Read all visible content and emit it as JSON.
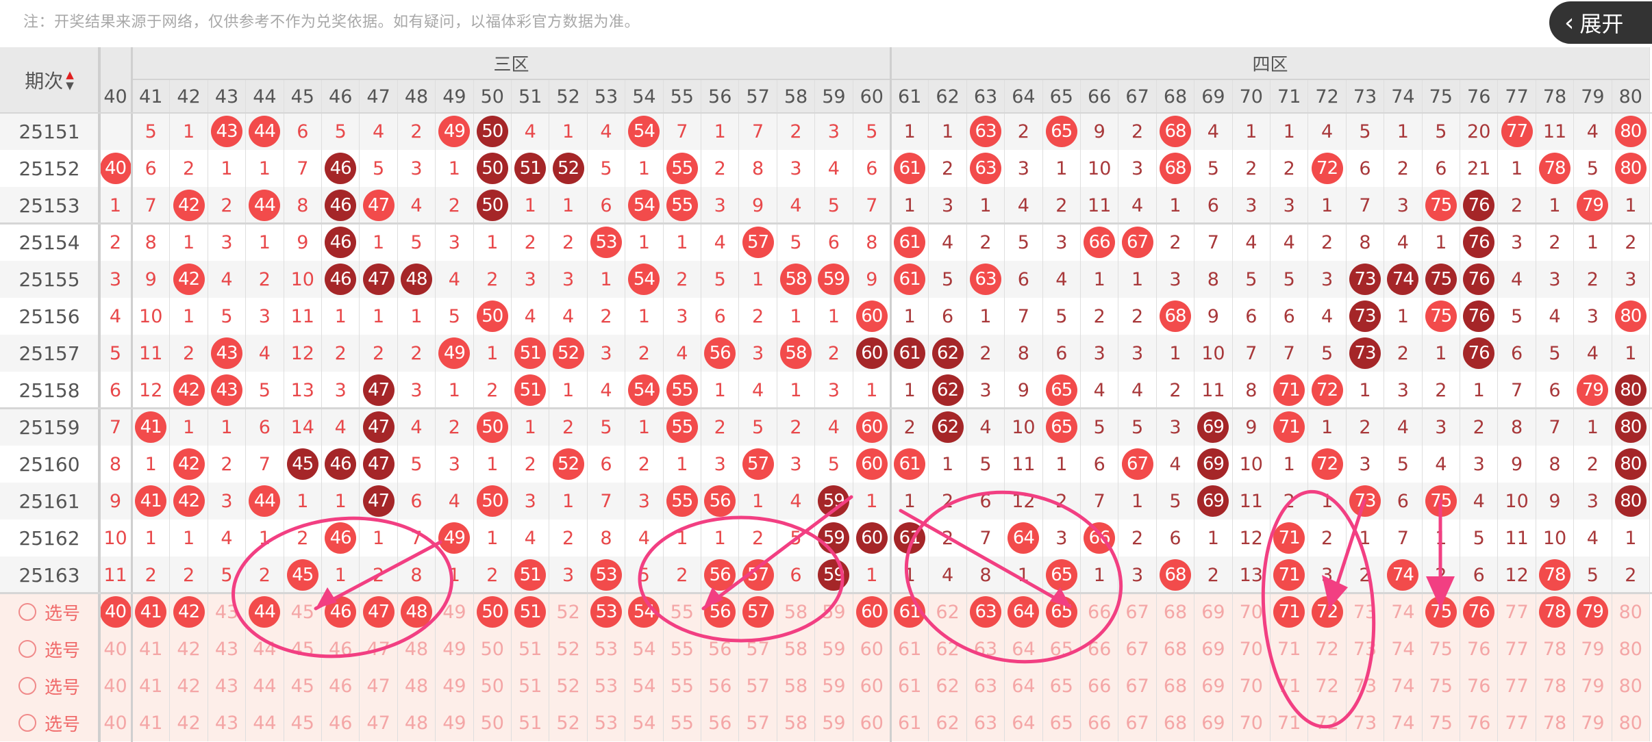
{
  "notice": "注：开奖结果来源于网络，仅供参考不作为兑奖依据。如有疑问，以福体彩官方数据为准。",
  "header": {
    "period_label": "期次",
    "sort_up_icon": "triangle-up-icon",
    "sort_down_icon": "triangle-down-icon",
    "zones": [
      {
        "label": "三区",
        "from": 41,
        "to": 60
      },
      {
        "label": "四区",
        "from": 61,
        "to": 80
      }
    ],
    "partial_column": "40",
    "columns": [
      "41",
      "42",
      "43",
      "44",
      "45",
      "46",
      "47",
      "48",
      "49",
      "50",
      "51",
      "52",
      "53",
      "54",
      "55",
      "56",
      "57",
      "58",
      "59",
      "60",
      "61",
      "62",
      "63",
      "64",
      "65",
      "66",
      "67",
      "68",
      "69",
      "70",
      "71",
      "72",
      "73",
      "74",
      "75",
      "76",
      "77",
      "78",
      "79",
      "80"
    ]
  },
  "colors": {
    "ball_light": "#f24b4b",
    "ball_dark": "#a52628",
    "miss_zone3": "#e8484a",
    "miss_zone4": "#a8383a",
    "annotation": "#f23f82"
  },
  "rows": [
    {
      "period": "25151",
      "col40": "",
      "cells": [
        "5",
        "1",
        {
          "ball": "43",
          "tone": "light"
        },
        {
          "ball": "44",
          "tone": "light"
        },
        "6",
        "5",
        "4",
        "2",
        {
          "ball": "49",
          "tone": "light"
        },
        {
          "ball": "50",
          "tone": "dark"
        },
        "4",
        "1",
        "4",
        {
          "ball": "54",
          "tone": "light"
        },
        "7",
        "1",
        "7",
        "2",
        "3",
        "5",
        "1",
        "1",
        {
          "ball": "63",
          "tone": "light"
        },
        "2",
        {
          "ball": "65",
          "tone": "light"
        },
        "9",
        "2",
        {
          "ball": "68",
          "tone": "light"
        },
        "4",
        "1",
        "1",
        "4",
        "5",
        "1",
        "5",
        "20",
        {
          "ball": "77",
          "tone": "light"
        },
        "11",
        "4",
        {
          "ball": "80",
          "tone": "light"
        }
      ]
    },
    {
      "period": "25152",
      "col40": {
        "ball": "40",
        "tone": "light"
      },
      "cells": [
        "6",
        "2",
        "1",
        "1",
        "7",
        {
          "ball": "46",
          "tone": "dark"
        },
        "5",
        "3",
        "1",
        {
          "ball": "50",
          "tone": "dark"
        },
        {
          "ball": "51",
          "tone": "dark"
        },
        {
          "ball": "52",
          "tone": "dark"
        },
        "5",
        "1",
        {
          "ball": "55",
          "tone": "light"
        },
        "2",
        "8",
        "3",
        "4",
        "6",
        {
          "ball": "61",
          "tone": "light"
        },
        "2",
        {
          "ball": "63",
          "tone": "light"
        },
        "3",
        "1",
        "10",
        "3",
        {
          "ball": "68",
          "tone": "light"
        },
        "5",
        "2",
        "2",
        {
          "ball": "72",
          "tone": "light"
        },
        "6",
        "2",
        "6",
        "21",
        "1",
        {
          "ball": "78",
          "tone": "light"
        },
        "5",
        {
          "ball": "80",
          "tone": "light"
        }
      ]
    },
    {
      "period": "25153",
      "col40": "1",
      "cells": [
        "7",
        {
          "ball": "42",
          "tone": "light"
        },
        "2",
        {
          "ball": "44",
          "tone": "light"
        },
        "8",
        {
          "ball": "46",
          "tone": "dark"
        },
        {
          "ball": "47",
          "tone": "light"
        },
        "4",
        "2",
        {
          "ball": "50",
          "tone": "dark"
        },
        "1",
        "1",
        "6",
        {
          "ball": "54",
          "tone": "light"
        },
        {
          "ball": "55",
          "tone": "light"
        },
        "3",
        "9",
        "4",
        "5",
        "7",
        "1",
        "3",
        "1",
        "4",
        "2",
        "11",
        "4",
        "1",
        "6",
        "3",
        "3",
        "1",
        "7",
        "3",
        {
          "ball": "75",
          "tone": "light"
        },
        {
          "ball": "76",
          "tone": "dark"
        },
        "2",
        "1",
        {
          "ball": "79",
          "tone": "light"
        },
        "1"
      ]
    },
    {
      "period": "25154",
      "col40": "2",
      "cells": [
        "8",
        "1",
        "3",
        "1",
        "9",
        {
          "ball": "46",
          "tone": "dark"
        },
        "1",
        "5",
        "3",
        "1",
        "2",
        "2",
        {
          "ball": "53",
          "tone": "light"
        },
        "1",
        "1",
        "4",
        {
          "ball": "57",
          "tone": "light"
        },
        "5",
        "6",
        "8",
        {
          "ball": "61",
          "tone": "light"
        },
        "4",
        "2",
        "5",
        "3",
        {
          "ball": "66",
          "tone": "light"
        },
        {
          "ball": "67",
          "tone": "light"
        },
        "2",
        "7",
        "4",
        "4",
        "2",
        "8",
        "4",
        "1",
        {
          "ball": "76",
          "tone": "dark"
        },
        "3",
        "2",
        "1",
        "2"
      ]
    },
    {
      "period": "25155",
      "col40": "3",
      "cells": [
        "9",
        {
          "ball": "42",
          "tone": "light"
        },
        "4",
        "2",
        "10",
        {
          "ball": "46",
          "tone": "dark"
        },
        {
          "ball": "47",
          "tone": "dark"
        },
        {
          "ball": "48",
          "tone": "dark"
        },
        "4",
        "2",
        "3",
        "3",
        "1",
        {
          "ball": "54",
          "tone": "light"
        },
        "2",
        "5",
        "1",
        {
          "ball": "58",
          "tone": "light"
        },
        {
          "ball": "59",
          "tone": "light"
        },
        "9",
        {
          "ball": "61",
          "tone": "light"
        },
        "5",
        {
          "ball": "63",
          "tone": "light"
        },
        "6",
        "4",
        "1",
        "1",
        "3",
        "8",
        "5",
        "5",
        "3",
        {
          "ball": "73",
          "tone": "dark"
        },
        {
          "ball": "74",
          "tone": "dark"
        },
        {
          "ball": "75",
          "tone": "dark"
        },
        {
          "ball": "76",
          "tone": "dark"
        },
        "4",
        "3",
        "2",
        "3"
      ]
    },
    {
      "period": "25156",
      "col40": "4",
      "cells": [
        "10",
        "1",
        "5",
        "3",
        "11",
        "1",
        "1",
        "1",
        "5",
        {
          "ball": "50",
          "tone": "light"
        },
        "4",
        "4",
        "2",
        "1",
        "3",
        "6",
        "2",
        "1",
        "1",
        {
          "ball": "60",
          "tone": "light"
        },
        "1",
        "6",
        "1",
        "7",
        "5",
        "2",
        "2",
        {
          "ball": "68",
          "tone": "light"
        },
        "9",
        "6",
        "6",
        "4",
        {
          "ball": "73",
          "tone": "dark"
        },
        "1",
        {
          "ball": "75",
          "tone": "light"
        },
        {
          "ball": "76",
          "tone": "dark"
        },
        "5",
        "4",
        "3",
        {
          "ball": "80",
          "tone": "light"
        }
      ]
    },
    {
      "period": "25157",
      "col40": "5",
      "cells": [
        "11",
        "2",
        {
          "ball": "43",
          "tone": "light"
        },
        "4",
        "12",
        "2",
        "2",
        "2",
        {
          "ball": "49",
          "tone": "light"
        },
        "1",
        {
          "ball": "51",
          "tone": "light"
        },
        {
          "ball": "52",
          "tone": "light"
        },
        "3",
        "2",
        "4",
        {
          "ball": "56",
          "tone": "light"
        },
        "3",
        {
          "ball": "58",
          "tone": "light"
        },
        "2",
        {
          "ball": "60",
          "tone": "dark"
        },
        {
          "ball": "61",
          "tone": "dark"
        },
        {
          "ball": "62",
          "tone": "dark"
        },
        "2",
        "8",
        "6",
        "3",
        "3",
        "1",
        "10",
        "7",
        "7",
        "5",
        {
          "ball": "73",
          "tone": "dark"
        },
        "2",
        "1",
        {
          "ball": "76",
          "tone": "dark"
        },
        "6",
        "5",
        "4",
        "1"
      ]
    },
    {
      "period": "25158",
      "col40": "6",
      "cells": [
        "12",
        {
          "ball": "42",
          "tone": "light"
        },
        {
          "ball": "43",
          "tone": "light"
        },
        "5",
        "13",
        "3",
        {
          "ball": "47",
          "tone": "dark"
        },
        "3",
        "1",
        "2",
        {
          "ball": "51",
          "tone": "light"
        },
        "1",
        "4",
        {
          "ball": "54",
          "tone": "light"
        },
        {
          "ball": "55",
          "tone": "light"
        },
        "1",
        "4",
        "1",
        "3",
        "1",
        "1",
        {
          "ball": "62",
          "tone": "dark"
        },
        "3",
        "9",
        {
          "ball": "65",
          "tone": "light"
        },
        "4",
        "4",
        "2",
        "11",
        "8",
        {
          "ball": "71",
          "tone": "light"
        },
        {
          "ball": "72",
          "tone": "light"
        },
        "1",
        "3",
        "2",
        "1",
        "7",
        "6",
        {
          "ball": "79",
          "tone": "light"
        },
        {
          "ball": "80",
          "tone": "dark"
        }
      ]
    },
    {
      "period": "25159",
      "col40": "7",
      "cells": [
        {
          "ball": "41",
          "tone": "light"
        },
        "1",
        "1",
        "6",
        "14",
        "4",
        {
          "ball": "47",
          "tone": "dark"
        },
        "4",
        "2",
        {
          "ball": "50",
          "tone": "light"
        },
        "1",
        "2",
        "5",
        "1",
        {
          "ball": "55",
          "tone": "light"
        },
        "2",
        "5",
        "2",
        "4",
        {
          "ball": "60",
          "tone": "light"
        },
        "2",
        {
          "ball": "62",
          "tone": "dark"
        },
        "4",
        "10",
        {
          "ball": "65",
          "tone": "light"
        },
        "5",
        "5",
        "3",
        {
          "ball": "69",
          "tone": "dark"
        },
        "9",
        {
          "ball": "71",
          "tone": "light"
        },
        "1",
        "2",
        "4",
        "3",
        "2",
        "8",
        "7",
        "1",
        {
          "ball": "80",
          "tone": "dark"
        }
      ]
    },
    {
      "period": "25160",
      "col40": "8",
      "cells": [
        "1",
        {
          "ball": "42",
          "tone": "light"
        },
        "2",
        "7",
        {
          "ball": "45",
          "tone": "dark"
        },
        {
          "ball": "46",
          "tone": "dark"
        },
        {
          "ball": "47",
          "tone": "dark"
        },
        "5",
        "3",
        "1",
        "2",
        {
          "ball": "52",
          "tone": "light"
        },
        "6",
        "2",
        "1",
        "3",
        {
          "ball": "57",
          "tone": "light"
        },
        "3",
        "5",
        {
          "ball": "60",
          "tone": "light"
        },
        {
          "ball": "61",
          "tone": "light"
        },
        "1",
        "5",
        "11",
        "1",
        "6",
        {
          "ball": "67",
          "tone": "light"
        },
        "4",
        {
          "ball": "69",
          "tone": "dark"
        },
        "10",
        "1",
        {
          "ball": "72",
          "tone": "light"
        },
        "3",
        "5",
        "4",
        "3",
        "9",
        "8",
        "2",
        {
          "ball": "80",
          "tone": "dark"
        }
      ]
    },
    {
      "period": "25161",
      "col40": "9",
      "cells": [
        {
          "ball": "41",
          "tone": "light"
        },
        {
          "ball": "42",
          "tone": "light"
        },
        "3",
        {
          "ball": "44",
          "tone": "light"
        },
        "1",
        "1",
        {
          "ball": "47",
          "tone": "dark"
        },
        "6",
        "4",
        {
          "ball": "50",
          "tone": "light"
        },
        "3",
        "1",
        "7",
        "3",
        {
          "ball": "55",
          "tone": "light"
        },
        {
          "ball": "56",
          "tone": "light"
        },
        "1",
        "4",
        {
          "ball": "59",
          "tone": "dark"
        },
        "1",
        "1",
        "2",
        "6",
        "12",
        "2",
        "7",
        "1",
        "5",
        {
          "ball": "69",
          "tone": "dark"
        },
        "11",
        "2",
        "1",
        {
          "ball": "73",
          "tone": "light"
        },
        "6",
        {
          "ball": "75",
          "tone": "light"
        },
        "4",
        "10",
        "9",
        "3",
        {
          "ball": "80",
          "tone": "dark"
        }
      ]
    },
    {
      "period": "25162",
      "col40": "10",
      "cells": [
        "1",
        "1",
        "4",
        "1",
        "2",
        {
          "ball": "46",
          "tone": "light"
        },
        "1",
        "7",
        {
          "ball": "49",
          "tone": "light"
        },
        "1",
        "4",
        "2",
        "8",
        "4",
        "1",
        "1",
        "2",
        "5",
        {
          "ball": "59",
          "tone": "dark"
        },
        {
          "ball": "60",
          "tone": "dark"
        },
        {
          "ball": "61",
          "tone": "dark"
        },
        "2",
        "7",
        {
          "ball": "64",
          "tone": "light"
        },
        "3",
        {
          "ball": "66",
          "tone": "light"
        },
        "2",
        "6",
        "1",
        "12",
        {
          "ball": "71",
          "tone": "light"
        },
        "2",
        "1",
        "7",
        "1",
        "5",
        "11",
        "10",
        "4",
        "1"
      ]
    },
    {
      "period": "25163",
      "col40": "11",
      "cells": [
        "2",
        "2",
        "5",
        "2",
        {
          "ball": "45",
          "tone": "light"
        },
        "1",
        "2",
        "8",
        "1",
        "2",
        {
          "ball": "51",
          "tone": "light"
        },
        "3",
        {
          "ball": "53",
          "tone": "light"
        },
        "5",
        "2",
        {
          "ball": "56",
          "tone": "light"
        },
        {
          "ball": "57",
          "tone": "light"
        },
        "6",
        {
          "ball": "59",
          "tone": "dark"
        },
        "1",
        "1",
        "4",
        "8",
        "1",
        {
          "ball": "65",
          "tone": "light"
        },
        "1",
        "3",
        {
          "ball": "68",
          "tone": "light"
        },
        "2",
        "13",
        {
          "ball": "71",
          "tone": "light"
        },
        "3",
        "2",
        {
          "ball": "74",
          "tone": "light"
        },
        "2",
        "6",
        "12",
        {
          "ball": "78",
          "tone": "light"
        },
        "5",
        "2"
      ]
    }
  ],
  "selection": {
    "radio_icon": "radio-circle-icon",
    "label": "选号",
    "rows": [
      {
        "selected": [
          "40",
          "41",
          "42",
          "44",
          "46",
          "47",
          "48",
          "50",
          "51",
          "53",
          "54",
          "56",
          "57",
          "60",
          "61",
          "63",
          "64",
          "65",
          "71",
          "72",
          "75",
          "76",
          "78",
          "79"
        ]
      },
      {
        "selected": []
      },
      {
        "selected": []
      },
      {
        "selected": []
      }
    ]
  },
  "expand_button": {
    "label": "展开",
    "icon": "chevron-left-icon"
  },
  "annotations": {
    "type": "hand-drawn circles and arrows",
    "circles": 4,
    "arrows": 5
  }
}
